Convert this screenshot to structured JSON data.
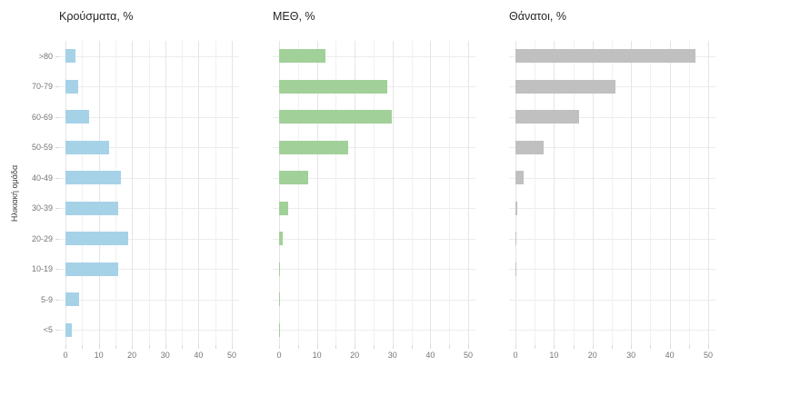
{
  "chart_data": {
    "type": "bar",
    "orientation": "horizontal",
    "y_axis_title": "Ηλικιακή ομάδα",
    "categories": [
      ">80",
      "70-79",
      "60-69",
      "50-59",
      "40-49",
      "30-39",
      "20-29",
      "10-19",
      "5-9",
      "<5"
    ],
    "x_ticks": [
      0,
      10,
      20,
      30,
      40,
      50
    ],
    "xlim": [
      0,
      50
    ],
    "grid": {
      "vertical_minor_every": 5,
      "vertical_major_every": 10,
      "horizontal": "one line per category"
    },
    "legend": "none",
    "series": [
      {
        "name": "Κρούσματα, %",
        "color": "#a6d2e8",
        "values": [
          2.9,
          3.9,
          7.2,
          13.0,
          16.8,
          15.8,
          18.8,
          15.8,
          4.2,
          1.8
        ]
      },
      {
        "name": "ΜΕΘ, %",
        "color": "#a1d099",
        "values": [
          12.3,
          28.5,
          29.8,
          18.3,
          7.7,
          2.3,
          1.0,
          0.3,
          0.2,
          0.2
        ]
      },
      {
        "name": "Θάνατοι, %",
        "color": "#c0c0c0",
        "values": [
          46.8,
          26.0,
          16.5,
          7.4,
          2.2,
          0.5,
          0.2,
          0.1,
          0.0,
          0.0
        ]
      }
    ]
  }
}
